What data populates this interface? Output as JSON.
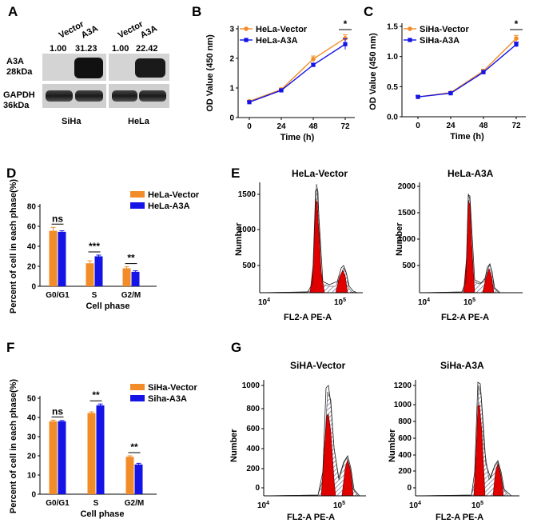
{
  "colors": {
    "orange": "#f28c28",
    "blue": "#1414e6",
    "red": "#e00000",
    "axis": "#000000"
  },
  "panel_a": {
    "label": "A",
    "lanes": [
      "Vector",
      "A3A",
      "Vector",
      "A3A"
    ],
    "quant": [
      "1.00",
      "31.23",
      "1.00",
      "22.42"
    ],
    "rows": [
      [
        "A3A",
        "28kDa"
      ],
      [
        "GAPDH",
        "36kDa"
      ]
    ],
    "cells": [
      "SiHa",
      "HeLa"
    ]
  },
  "panel_e": {
    "label": "E",
    "titles": [
      "HeLa-Vector",
      "HeLa-A3A"
    ],
    "ylabel": "Number",
    "xlabel": "FL2-A PE-A",
    "xtick_low": "10",
    "xtick_low_exp": "4",
    "xtick_high": "10",
    "xtick_high_exp": "5",
    "yticks": [
      [
        "500",
        "1000",
        "1500"
      ],
      [
        "500",
        "1000",
        "1500",
        "2000"
      ]
    ]
  },
  "panel_g": {
    "label": "G",
    "titles": [
      "SiHA-Vector",
      "SiHa-A3A"
    ],
    "ylabel": "Number",
    "xlabel": "FL2-A PE-A",
    "xtick_low": "10",
    "xtick_low_exp": "4",
    "xtick_high": "10",
    "xtick_high_exp": "5",
    "yticks": [
      [
        "0",
        "200",
        "400",
        "600",
        "800",
        "1000"
      ],
      [
        "0",
        "200",
        "400",
        "600",
        "800",
        "1000",
        "1200"
      ]
    ]
  },
  "chart_data": [
    {
      "id": "B",
      "type": "line",
      "x": [
        0,
        24,
        48,
        72
      ],
      "xticks": [
        "0",
        "24",
        "48",
        "72"
      ],
      "series": [
        {
          "name": "HeLa-Vector",
          "values": [
            0.55,
            0.95,
            1.98,
            2.68
          ],
          "errors": [
            0.03,
            0.05,
            0.1,
            0.12
          ]
        },
        {
          "name": "HeLa-A3A",
          "values": [
            0.52,
            0.92,
            1.78,
            2.48
          ],
          "errors": [
            0.03,
            0.04,
            0.06,
            0.18
          ]
        }
      ],
      "xlabel": "Time (h)",
      "ylabel": "OD Value (450 nm)",
      "ylim": [
        0,
        3
      ],
      "yticks": [
        "0",
        "1",
        "2",
        "3"
      ],
      "annotation": "*"
    },
    {
      "id": "C",
      "type": "line",
      "x": [
        0,
        24,
        48,
        72
      ],
      "xticks": [
        "0",
        "24",
        "48",
        "72"
      ],
      "series": [
        {
          "name": "SiHa-Vector",
          "values": [
            0.33,
            0.4,
            0.76,
            1.3
          ],
          "errors": [
            0.02,
            0.02,
            0.03,
            0.05
          ]
        },
        {
          "name": "SiHa-A3A",
          "values": [
            0.33,
            0.39,
            0.74,
            1.2
          ],
          "errors": [
            0.02,
            0.02,
            0.03,
            0.04
          ]
        }
      ],
      "xlabel": "Time (h)",
      "ylabel": "OD Value (450 nm)",
      "ylim": [
        0,
        1.5
      ],
      "yticks": [
        "0.0",
        "0.5",
        "1.0",
        "1.5"
      ],
      "annotation": "*"
    },
    {
      "id": "D",
      "type": "bar",
      "categories": [
        "G0/G1",
        "S",
        "G2/M"
      ],
      "series": [
        {
          "name": "HeLa-Vector",
          "values": [
            55.5,
            23.0,
            18.0
          ],
          "errors": [
            3.5,
            2.5,
            1.5
          ]
        },
        {
          "name": "HeLa-A3A",
          "values": [
            54.5,
            30.0,
            14.5
          ],
          "errors": [
            1.0,
            1.2,
            1.0
          ]
        }
      ],
      "significance": [
        "ns",
        "***",
        "**"
      ],
      "xlabel": "Cell phase",
      "ylabel": "Percent of cell in each phase(%)",
      "ylim": [
        0,
        80
      ],
      "yticks": [
        "0",
        "20",
        "40",
        "60",
        "80"
      ]
    },
    {
      "id": "F",
      "type": "bar",
      "categories": [
        "G0/G1",
        "S",
        "G2/M"
      ],
      "series": [
        {
          "name": "SiHa-Vector",
          "values": [
            38.0,
            42.3,
            19.5
          ],
          "errors": [
            0.6,
            0.6,
            0.5
          ]
        },
        {
          "name": "Siha-A3A",
          "values": [
            38.0,
            46.3,
            15.5
          ],
          "errors": [
            0.4,
            0.7,
            0.6
          ]
        }
      ],
      "significance": [
        "ns",
        "**",
        "**"
      ],
      "xlabel": "Cell phase",
      "ylabel": "Percent of cell in each phase(%)",
      "ylim": [
        0,
        50
      ],
      "yticks": [
        "0",
        "10",
        "20",
        "30",
        "40",
        "50"
      ]
    }
  ]
}
